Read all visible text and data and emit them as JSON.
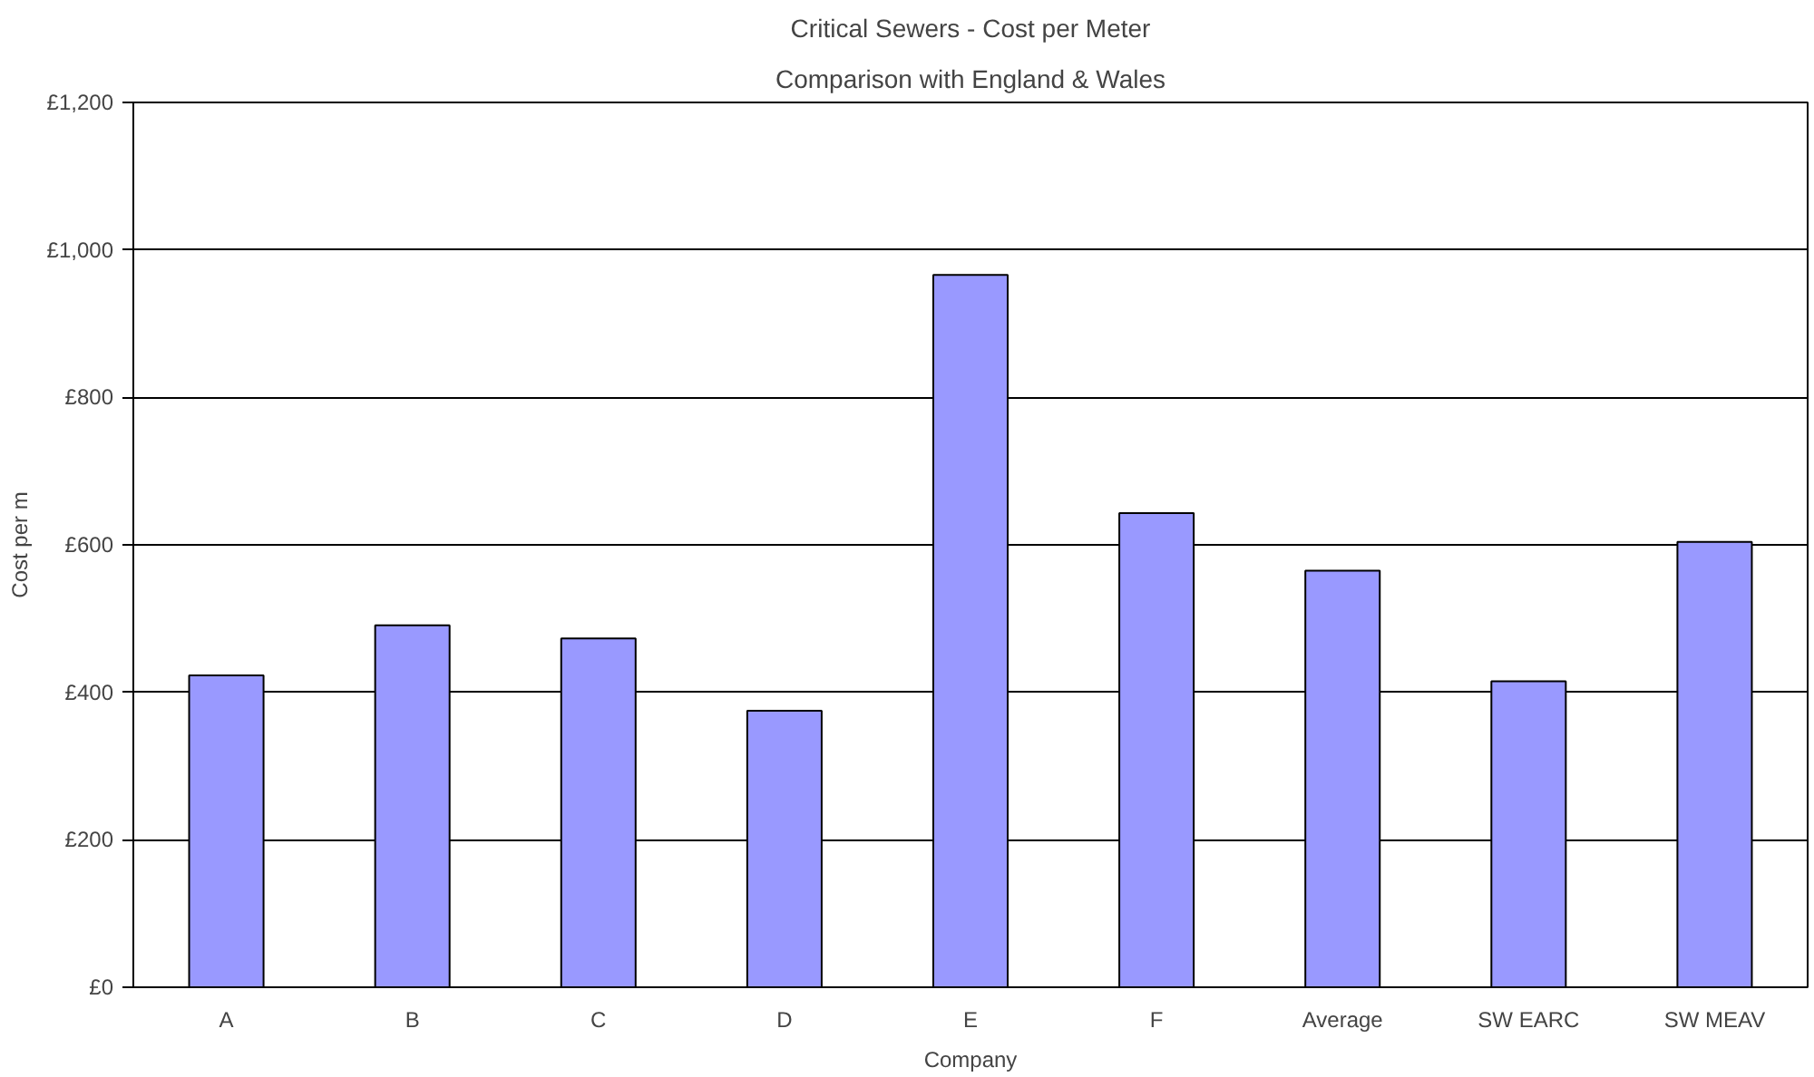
{
  "chart_data": {
    "type": "bar",
    "title": "Critical Sewers - Cost per Meter",
    "subtitle": "Comparison with England & Wales",
    "xlabel": "Company",
    "ylabel": "Cost per m",
    "categories": [
      "A",
      "B",
      "C",
      "D",
      "E",
      "F",
      "Average",
      "SW EARC",
      "SW MEAV"
    ],
    "values": [
      423,
      491,
      473,
      375,
      966,
      643,
      565,
      415,
      604
    ],
    "color": "#9999ff",
    "ylim": [
      0,
      1200
    ],
    "yticks": [
      {
        "value": 0,
        "label": "£0"
      },
      {
        "value": 200,
        "label": "£200"
      },
      {
        "value": 400,
        "label": "£400"
      },
      {
        "value": 600,
        "label": "£600"
      },
      {
        "value": 800,
        "label": "£800"
      },
      {
        "value": 1000,
        "label": "£1,000"
      },
      {
        "value": 1200,
        "label": "£1,200"
      }
    ],
    "grid": "y"
  }
}
